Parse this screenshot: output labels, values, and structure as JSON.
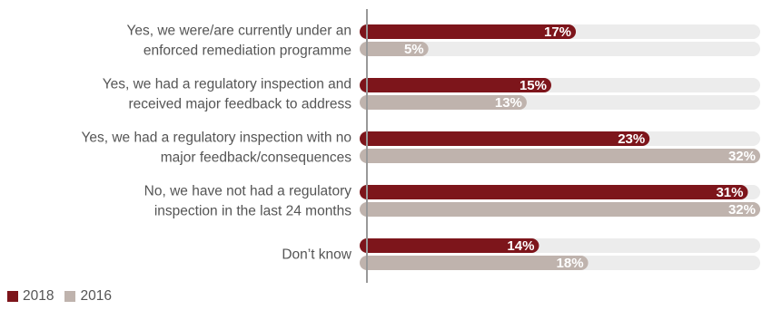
{
  "chart_data": {
    "type": "bar",
    "orientation": "horizontal",
    "categories": [
      [
        "Yes, we were/are currently under an",
        "enforced remediation programme"
      ],
      [
        "Yes, we had a regulatory inspection and",
        "received major feedback to address"
      ],
      [
        "Yes, we had a regulatory inspection with no",
        "major feedback/consequences"
      ],
      [
        "No, we have not had a regulatory",
        "inspection in the last 24 months"
      ],
      [
        "Don’t know"
      ]
    ],
    "series": [
      {
        "name": "2018",
        "values": [
          17,
          15,
          23,
          31,
          14
        ],
        "labels": [
          "17%",
          "15%",
          "23%",
          "31%",
          "14%"
        ],
        "color": "#7d151b"
      },
      {
        "name": "2016",
        "values": [
          5,
          13,
          32,
          32,
          18
        ],
        "labels": [
          "5%",
          "13%",
          "32%",
          "32%",
          "18%"
        ],
        "color": "#bfb3ad"
      }
    ],
    "xlim": [
      0,
      32
    ],
    "track_color": "#ececec",
    "axis_color": "#999999",
    "legend_position": "bottom-left"
  }
}
